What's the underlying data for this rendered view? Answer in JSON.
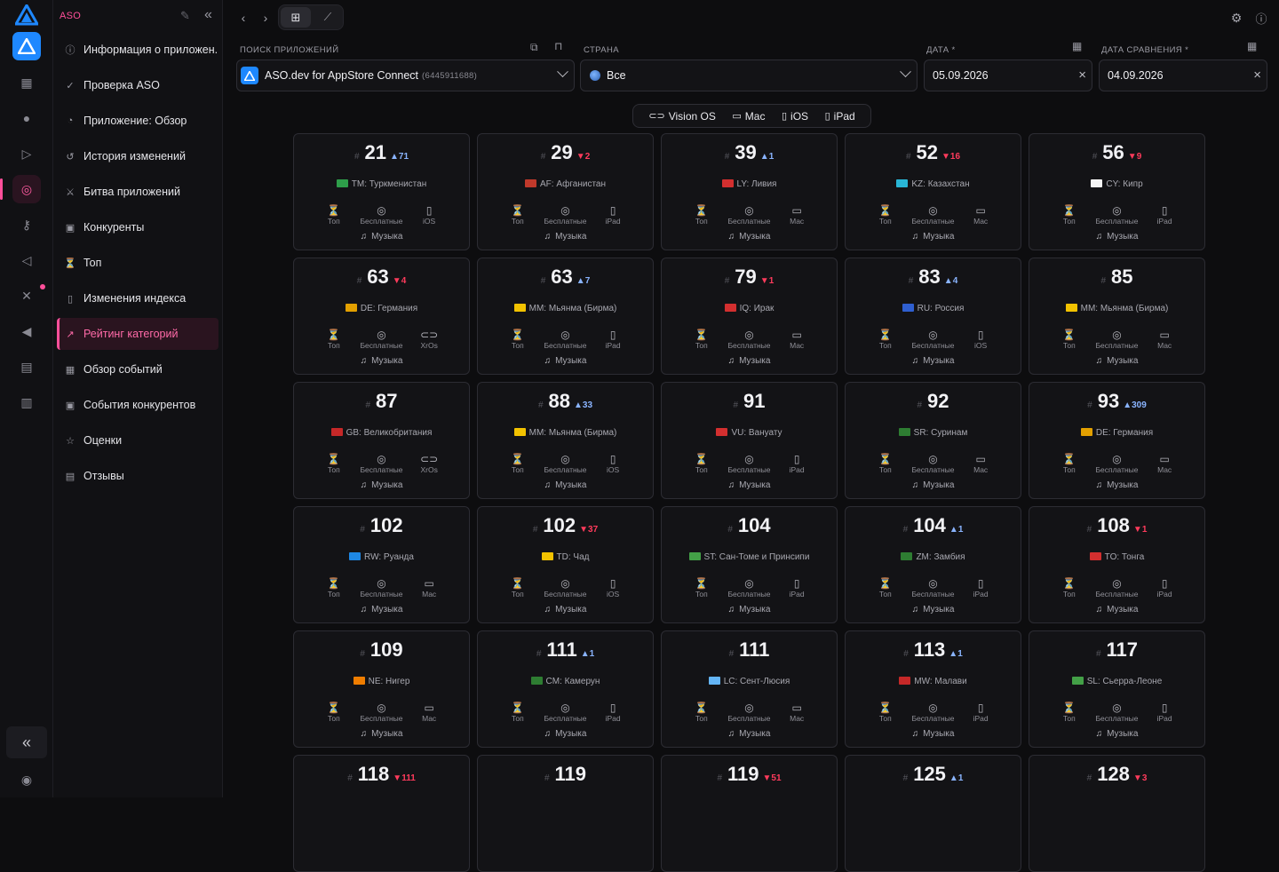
{
  "app": {
    "section": "ASO"
  },
  "sidebar": {
    "items": [
      {
        "label": "Информация о приложен...",
        "icon": "info-icon"
      },
      {
        "label": "Проверка ASO",
        "icon": "check-circle-icon"
      },
      {
        "label": "Приложение: Обзор",
        "icon": "pie-icon"
      },
      {
        "label": "История изменений",
        "icon": "history-icon"
      },
      {
        "label": "Битва приложений",
        "icon": "battle-icon"
      },
      {
        "label": "Конкуренты",
        "icon": "competitors-icon"
      },
      {
        "label": "Топ",
        "icon": "trophy-icon"
      },
      {
        "label": "Изменения индекса",
        "icon": "phone-icon"
      },
      {
        "label": "Рейтинг категорий",
        "icon": "trend-icon",
        "active": true
      },
      {
        "label": "Обзор событий",
        "icon": "calendar-icon"
      },
      {
        "label": "События конкурентов",
        "icon": "events-icon"
      },
      {
        "label": "Оценки",
        "icon": "star-icon"
      },
      {
        "label": "Отзывы",
        "icon": "reviews-icon"
      }
    ]
  },
  "filters": {
    "search_label": "ПОИСК ПРИЛОЖЕНИЙ",
    "app_name": "ASO.dev for AppStore Connect",
    "app_id": "(6445911688)",
    "country_label": "СТРАНА",
    "country_value": "Все",
    "date_label": "ДАТА *",
    "date_value": "05.09.2026",
    "compare_label": "ДАТА СРАВНЕНИЯ *",
    "compare_value": "04.09.2026"
  },
  "platforms": [
    "Vision OS",
    "Mac",
    "iOS",
    "iPad"
  ],
  "card_labels": {
    "top": "Топ",
    "free": "Бесплатные",
    "category": "Музыка",
    "hash": "#"
  },
  "cards": [
    {
      "rank": "21",
      "dir": "up",
      "change": "71",
      "country": "TM: Туркменистан",
      "device": "iOS",
      "flag": "#2e9e4a"
    },
    {
      "rank": "29",
      "dir": "down",
      "change": "2",
      "country": "AF: Афганистан",
      "device": "iPad",
      "flag": "#c0392b"
    },
    {
      "rank": "39",
      "dir": "up",
      "change": "1",
      "country": "LY: Ливия",
      "device": "Mac",
      "flag": "#d32f2f"
    },
    {
      "rank": "52",
      "dir": "down",
      "change": "16",
      "country": "KZ: Казахстан",
      "device": "Mac",
      "flag": "#29b6d6"
    },
    {
      "rank": "56",
      "dir": "down",
      "change": "9",
      "country": "CY: Кипр",
      "device": "iPad",
      "flag": "#f5f5f5"
    },
    {
      "rank": "63",
      "dir": "down",
      "change": "4",
      "country": "DE: Германия",
      "device": "XrOs",
      "flag": "#e3a000"
    },
    {
      "rank": "63",
      "dir": "up",
      "change": "7",
      "country": "MM: Мьянма (Бирма)",
      "device": "iPad",
      "flag": "#f2c200"
    },
    {
      "rank": "79",
      "dir": "down",
      "change": "1",
      "country": "IQ: Ирак",
      "device": "Mac",
      "flag": "#d32f2f"
    },
    {
      "rank": "83",
      "dir": "up",
      "change": "4",
      "country": "RU: Россия",
      "device": "iOS",
      "flag": "#2f5fd0"
    },
    {
      "rank": "85",
      "dir": "",
      "change": "",
      "country": "MM: Мьянма (Бирма)",
      "device": "Mac",
      "flag": "#f2c200"
    },
    {
      "rank": "87",
      "dir": "",
      "change": "",
      "country": "GB: Великобритания",
      "device": "XrOs",
      "flag": "#c62828"
    },
    {
      "rank": "88",
      "dir": "up",
      "change": "33",
      "country": "MM: Мьянма (Бирма)",
      "device": "iOS",
      "flag": "#f2c200"
    },
    {
      "rank": "91",
      "dir": "",
      "change": "",
      "country": "VU: Вануату",
      "device": "iPad",
      "flag": "#d32f2f"
    },
    {
      "rank": "92",
      "dir": "",
      "change": "",
      "country": "SR: Суринам",
      "device": "Mac",
      "flag": "#2e7d32"
    },
    {
      "rank": "93",
      "dir": "up",
      "change": "309",
      "country": "DE: Германия",
      "device": "Mac",
      "flag": "#e3a000"
    },
    {
      "rank": "102",
      "dir": "",
      "change": "",
      "country": "RW: Руанда",
      "device": "Mac",
      "flag": "#1e88e5"
    },
    {
      "rank": "102",
      "dir": "down",
      "change": "37",
      "country": "TD: Чад",
      "device": "iOS",
      "flag": "#f2c200"
    },
    {
      "rank": "104",
      "dir": "",
      "change": "",
      "country": "ST: Сан-Томе и Принсипи",
      "device": "iPad",
      "flag": "#43a047"
    },
    {
      "rank": "104",
      "dir": "up",
      "change": "1",
      "country": "ZM: Замбия",
      "device": "iPad",
      "flag": "#2e7d32"
    },
    {
      "rank": "108",
      "dir": "down",
      "change": "1",
      "country": "TO: Тонга",
      "device": "iPad",
      "flag": "#d32f2f"
    },
    {
      "rank": "109",
      "dir": "",
      "change": "",
      "country": "NE: Нигер",
      "device": "Mac",
      "flag": "#ef7d00"
    },
    {
      "rank": "111",
      "dir": "up",
      "change": "1",
      "country": "CM: Камерун",
      "device": "iPad",
      "flag": "#2e7d32"
    },
    {
      "rank": "111",
      "dir": "",
      "change": "",
      "country": "LC: Сент-Люсия",
      "device": "Mac",
      "flag": "#64b5f6"
    },
    {
      "rank": "113",
      "dir": "up",
      "change": "1",
      "country": "MW: Малави",
      "device": "iPad",
      "flag": "#c62828"
    },
    {
      "rank": "117",
      "dir": "",
      "change": "",
      "country": "SL: Сьерра-Леоне",
      "device": "iPad",
      "flag": "#43a047"
    },
    {
      "rank": "118",
      "dir": "down",
      "change": "111",
      "country": "",
      "device": "",
      "flag": ""
    },
    {
      "rank": "119",
      "dir": "",
      "change": "",
      "country": "",
      "device": "",
      "flag": ""
    },
    {
      "rank": "119",
      "dir": "down",
      "change": "51",
      "country": "",
      "device": "",
      "flag": ""
    },
    {
      "rank": "125",
      "dir": "up",
      "change": "1",
      "country": "",
      "device": "",
      "flag": ""
    },
    {
      "rank": "128",
      "dir": "down",
      "change": "3",
      "country": "",
      "device": "",
      "flag": ""
    }
  ],
  "colors": {
    "accent": "#ff4f9a",
    "up": "#8ab4ff",
    "down": "#ff3b5c",
    "logo": "#1e88ff"
  }
}
